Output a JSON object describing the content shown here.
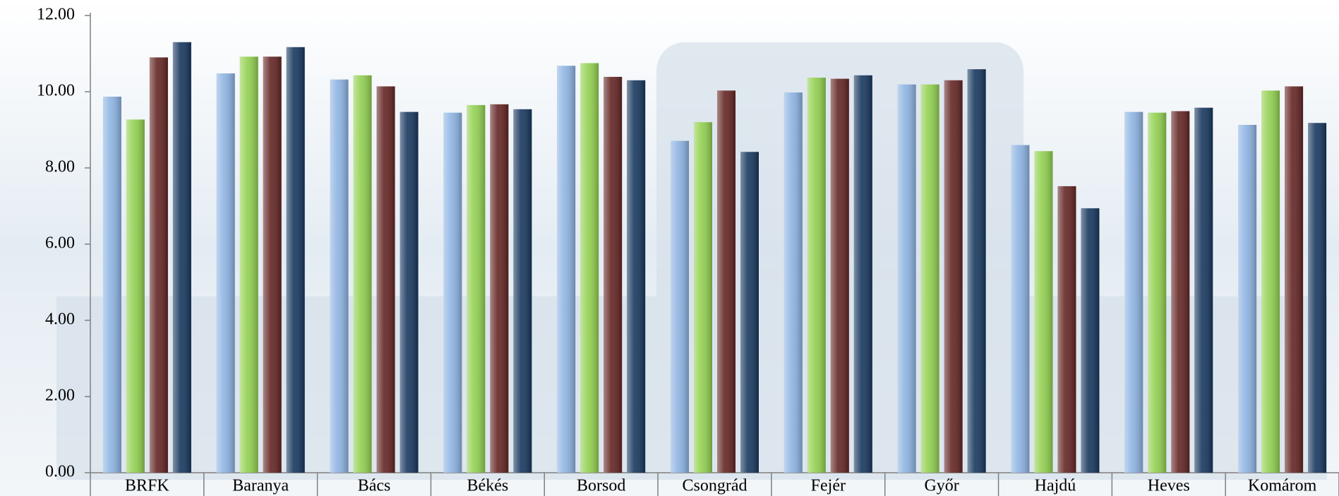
{
  "chart_data": {
    "type": "bar",
    "categories": [
      "BRFK",
      "Baranya",
      "Bács",
      "Békés",
      "Borsod",
      "Csongrád",
      "Fejér",
      "Győr",
      "Hajdú",
      "Heves",
      "Komárom"
    ],
    "series": [
      {
        "color": "#8db3e2",
        "values": [
          9.87,
          10.48,
          10.32,
          9.45,
          10.68,
          8.71,
          9.98,
          10.19,
          8.6,
          9.47,
          9.13
        ]
      },
      {
        "color": "#92d050",
        "values": [
          9.27,
          10.92,
          10.43,
          9.65,
          10.75,
          9.2,
          10.37,
          10.19,
          8.44,
          9.45,
          10.03
        ]
      },
      {
        "color": "#632523",
        "values": [
          10.9,
          10.92,
          10.14,
          9.67,
          10.39,
          10.03,
          10.34,
          10.3,
          7.52,
          9.49,
          10.14
        ]
      },
      {
        "color": "#17375e",
        "values": [
          11.3,
          11.17,
          9.47,
          9.54,
          10.3,
          8.42,
          10.43,
          10.59,
          6.94,
          9.58,
          9.18
        ]
      }
    ],
    "ylim": [
      0,
      12
    ],
    "yticks": [
      {
        "value": 0,
        "label": "0.00"
      },
      {
        "value": 2,
        "label": "2.00"
      },
      {
        "value": 4,
        "label": "4.00"
      },
      {
        "value": 6,
        "label": "6.00"
      },
      {
        "value": 8,
        "label": "8.00"
      },
      {
        "value": 10,
        "label": "10.00"
      },
      {
        "value": 12,
        "label": "12.00"
      }
    ]
  }
}
